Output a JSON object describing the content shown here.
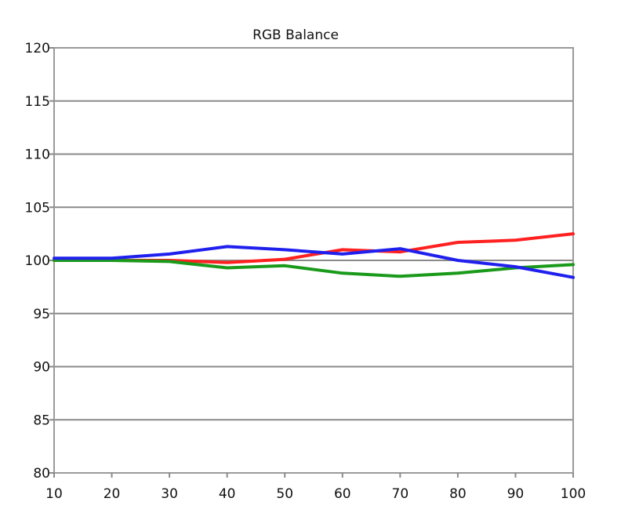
{
  "chart_data": {
    "type": "line",
    "title": "RGB Balance",
    "xlabel": "",
    "ylabel": "",
    "x": [
      10,
      20,
      30,
      40,
      50,
      60,
      70,
      80,
      90,
      100
    ],
    "xlim": [
      10,
      100
    ],
    "ylim": [
      80,
      120
    ],
    "xticks": [
      10,
      20,
      30,
      40,
      50,
      60,
      70,
      80,
      90,
      100
    ],
    "yticks": [
      80,
      85,
      90,
      95,
      100,
      105,
      110,
      115,
      120
    ],
    "grid": "horizontal",
    "legend": "none",
    "series": [
      {
        "color": "#ff2020",
        "values": [
          100.0,
          100.0,
          100.0,
          99.8,
          100.1,
          101.0,
          100.8,
          101.7,
          101.9,
          102.5
        ]
      },
      {
        "color": "#1a9a1a",
        "values": [
          100.0,
          100.0,
          99.9,
          99.3,
          99.5,
          98.8,
          98.5,
          98.8,
          99.3,
          99.6
        ]
      },
      {
        "color": "#2020ee",
        "values": [
          100.2,
          100.2,
          100.6,
          101.3,
          101.0,
          100.6,
          101.1,
          100.0,
          99.4,
          98.4
        ]
      }
    ]
  }
}
